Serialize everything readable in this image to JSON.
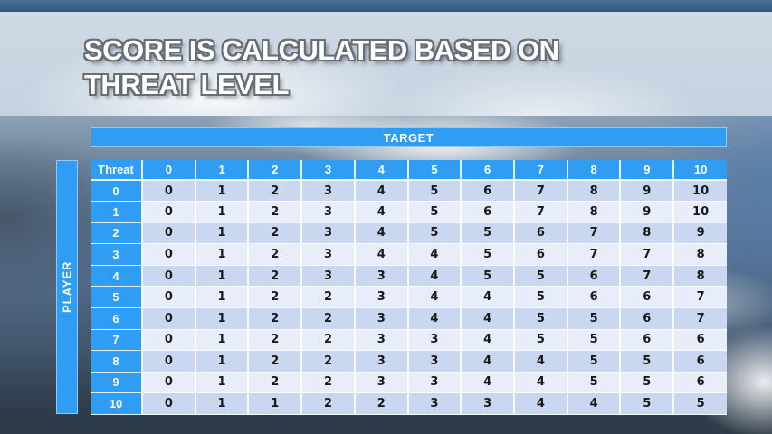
{
  "title": {
    "line1": "SCORE IS CALCULATED BASED ON",
    "line2": "THREAT LEVEL"
  },
  "chart_data": {
    "type": "table",
    "title": "Score is calculated based on threat level",
    "column_group_label": "TARGET",
    "row_group_label": "PLAYER",
    "corner_label": "Threat",
    "columns": [
      "0",
      "1",
      "2",
      "3",
      "4",
      "5",
      "6",
      "7",
      "8",
      "9",
      "10"
    ],
    "rows": [
      {
        "label": "0",
        "values": [
          0,
          1,
          2,
          3,
          4,
          5,
          6,
          7,
          8,
          9,
          10
        ]
      },
      {
        "label": "1",
        "values": [
          0,
          1,
          2,
          3,
          4,
          5,
          6,
          7,
          8,
          9,
          10
        ]
      },
      {
        "label": "2",
        "values": [
          0,
          1,
          2,
          3,
          4,
          5,
          5,
          6,
          7,
          8,
          9
        ]
      },
      {
        "label": "3",
        "values": [
          0,
          1,
          2,
          3,
          4,
          4,
          5,
          6,
          7,
          7,
          8
        ]
      },
      {
        "label": "4",
        "values": [
          0,
          1,
          2,
          3,
          3,
          4,
          5,
          5,
          6,
          7,
          8
        ]
      },
      {
        "label": "5",
        "values": [
          0,
          1,
          2,
          2,
          3,
          4,
          4,
          5,
          6,
          6,
          7
        ]
      },
      {
        "label": "6",
        "values": [
          0,
          1,
          2,
          2,
          3,
          4,
          4,
          5,
          5,
          6,
          7
        ]
      },
      {
        "label": "7",
        "values": [
          0,
          1,
          2,
          2,
          3,
          3,
          4,
          5,
          5,
          6,
          6
        ]
      },
      {
        "label": "8",
        "values": [
          0,
          1,
          2,
          2,
          3,
          3,
          4,
          4,
          5,
          5,
          6
        ]
      },
      {
        "label": "9",
        "values": [
          0,
          1,
          2,
          2,
          3,
          3,
          4,
          4,
          5,
          5,
          6
        ]
      },
      {
        "label": "10",
        "values": [
          0,
          1,
          1,
          2,
          2,
          3,
          3,
          4,
          4,
          5,
          5
        ]
      }
    ]
  },
  "colors": {
    "accent_blue": "#2f9df3",
    "row_shaded": "#c9d7f1",
    "row_light": "#e8edfa",
    "banner": "#ccd7e3",
    "top_strip": "#3a5f84",
    "bottom_strip": "#2e3b48"
  }
}
